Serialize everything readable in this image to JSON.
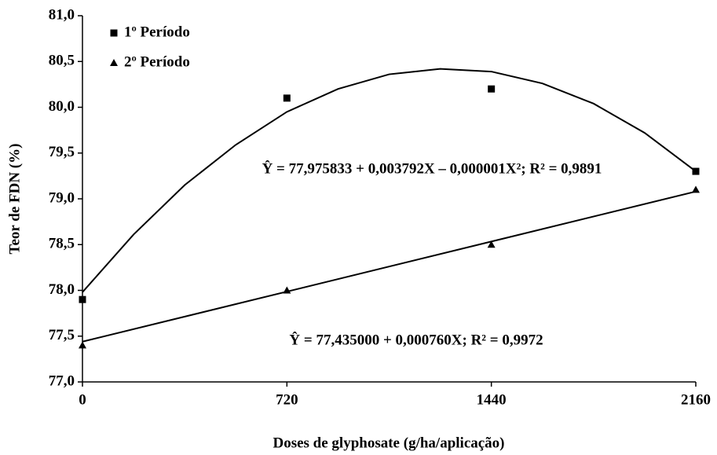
{
  "chart_data": {
    "type": "scatter",
    "x_label": "Doses de glyphosate (g/ha/aplicação)",
    "y_label": "Teor de FDN (%)",
    "xlim": [
      0,
      2160
    ],
    "xticks": [
      0,
      720,
      1440,
      2160
    ],
    "ylim": [
      77,
      81
    ],
    "yticks": [
      {
        "value": 77,
        "label": "77,0"
      },
      {
        "value": 77.5,
        "label": "77,5"
      },
      {
        "value": 78,
        "label": "78,0"
      },
      {
        "value": 78.5,
        "label": "78,5"
      },
      {
        "value": 79,
        "label": "79,0"
      },
      {
        "value": 79.5,
        "label": "79,5"
      },
      {
        "value": 80,
        "label": "80,0"
      },
      {
        "value": 80.5,
        "label": "80,5"
      },
      {
        "value": 81,
        "label": "81,0"
      }
    ],
    "legend": "upper left",
    "series": [
      {
        "name": "1º Período",
        "marker": "square",
        "color": "#000000",
        "x": [
          0,
          720,
          1440,
          2160
        ],
        "values": [
          77.9,
          80.1,
          80.2,
          79.3
        ]
      },
      {
        "name": "2º Período",
        "marker": "triangle",
        "color": "#000000",
        "x": [
          0,
          720,
          1440,
          2160
        ],
        "values": [
          77.4,
          78.0,
          78.5,
          79.1
        ]
      }
    ],
    "fits": [
      {
        "color": "#000000",
        "x": [
          0,
          180,
          360,
          540,
          720,
          900,
          1080,
          1260,
          1440,
          1620,
          1800,
          1980,
          2160
        ],
        "values": [
          77.98,
          78.61,
          79.15,
          79.59,
          79.95,
          80.2,
          80.36,
          80.42,
          80.39,
          80.26,
          80.04,
          79.72,
          79.3
        ]
      },
      {
        "color": "#000000",
        "x": [
          0,
          2160
        ],
        "values": [
          77.44,
          79.08
        ]
      }
    ],
    "annotations": [
      "Ŷ = 77,975833 + 0,003792X – 0,000001X²; R² = 0,9891",
      "Ŷ = 77,435000 + 0,000760X; R² = 0,9972"
    ]
  }
}
